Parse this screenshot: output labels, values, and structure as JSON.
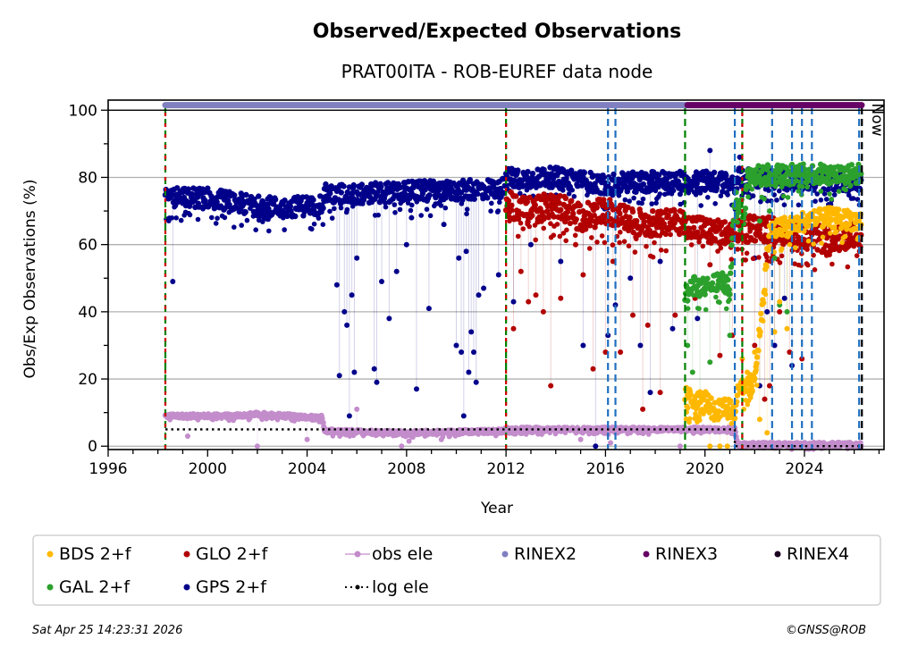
{
  "chart_data": {
    "type": "scatter",
    "title": "Observed/Expected Observations",
    "subtitle": "PRAT00ITA - ROB-EUREF data node",
    "xlabel": "Year",
    "ylabel": "Obs/Exp Observations (%)",
    "xlim": [
      1996,
      2027.2
    ],
    "ylim": [
      -1,
      103
    ],
    "xticks": [
      1996,
      2000,
      2004,
      2008,
      2012,
      2016,
      2020,
      2024
    ],
    "xtick_labels": [
      "1996",
      "2000",
      "2004",
      "2008",
      "2012",
      "2016",
      "2020",
      "2024"
    ],
    "yticks": [
      0,
      20,
      40,
      60,
      80,
      100
    ],
    "ytick_labels": [
      "0",
      "20",
      "40",
      "60",
      "80",
      "100"
    ],
    "grid": "horizontal",
    "now_label": "Now",
    "now_year": 2026.31,
    "series": [
      {
        "name": "GPS 2+f",
        "color": "#00008b",
        "segments": [
          [
            1998.3,
            74
          ],
          [
            2000.0,
            74
          ],
          [
            2001.5,
            72
          ],
          [
            2003.0,
            71
          ],
          [
            2004.6,
            72
          ],
          [
            2004.7,
            75
          ],
          [
            2006.0,
            75
          ],
          [
            2008.0,
            76
          ],
          [
            2010.0,
            76
          ],
          [
            2011.9,
            77
          ],
          [
            2012.0,
            80
          ],
          [
            2014.0,
            80
          ],
          [
            2016.0,
            78
          ],
          [
            2018.0,
            79
          ],
          [
            2020.0,
            79
          ],
          [
            2021.2,
            78
          ],
          [
            2021.3,
            80
          ],
          [
            2024.0,
            79
          ],
          [
            2026.3,
            79
          ]
        ],
        "spread": 3,
        "outliers": [
          [
            1998.6,
            49
          ],
          [
            2005.2,
            48
          ],
          [
            2005.3,
            21
          ],
          [
            2005.5,
            40
          ],
          [
            2005.6,
            36
          ],
          [
            2005.7,
            9
          ],
          [
            2005.8,
            45
          ],
          [
            2005.9,
            22
          ],
          [
            2006.0,
            56
          ],
          [
            2006.7,
            23
          ],
          [
            2006.8,
            19
          ],
          [
            2007.0,
            49
          ],
          [
            2007.3,
            38
          ],
          [
            2007.6,
            52
          ],
          [
            2008.0,
            60
          ],
          [
            2008.2,
            68
          ],
          [
            2008.4,
            17
          ],
          [
            2008.9,
            41
          ],
          [
            2009.5,
            66
          ],
          [
            2010.0,
            30
          ],
          [
            2010.1,
            56
          ],
          [
            2010.2,
            28
          ],
          [
            2010.3,
            9
          ],
          [
            2010.4,
            58
          ],
          [
            2010.5,
            22
          ],
          [
            2010.6,
            34
          ],
          [
            2010.7,
            28
          ],
          [
            2010.8,
            19
          ],
          [
            2010.9,
            45
          ],
          [
            2011.1,
            47
          ],
          [
            2011.7,
            51
          ],
          [
            2012.3,
            43
          ],
          [
            2013.0,
            60
          ],
          [
            2014.2,
            55
          ],
          [
            2015.1,
            30
          ],
          [
            2015.6,
            0
          ],
          [
            2016.1,
            33
          ],
          [
            2016.4,
            42
          ],
          [
            2017.0,
            50
          ],
          [
            2017.4,
            30
          ],
          [
            2017.8,
            16
          ],
          [
            2018.2,
            55
          ],
          [
            2018.7,
            35
          ],
          [
            2019.0,
            75
          ],
          [
            2019.7,
            38
          ],
          [
            2020.2,
            88
          ],
          [
            2021.4,
            86
          ],
          [
            2021.6,
            80
          ],
          [
            2022.0,
            56
          ],
          [
            2022.2,
            18
          ],
          [
            2022.5,
            40
          ],
          [
            2022.8,
            30
          ],
          [
            2023.2,
            44
          ],
          [
            2023.5,
            24
          ]
        ]
      },
      {
        "name": "GLO 2+f",
        "color": "#b20000",
        "segments": [
          [
            2012.0,
            72
          ],
          [
            2013.0,
            70
          ],
          [
            2014.0,
            72
          ],
          [
            2015.0,
            68
          ],
          [
            2016.0,
            70
          ],
          [
            2017.0,
            67
          ],
          [
            2018.0,
            66
          ],
          [
            2019.0,
            67
          ],
          [
            2020.0,
            64
          ],
          [
            2021.0,
            63
          ],
          [
            2022.0,
            65
          ],
          [
            2023.0,
            64
          ],
          [
            2024.0,
            63
          ],
          [
            2025.0,
            61
          ],
          [
            2026.3,
            64
          ]
        ],
        "spread": 4,
        "outliers": [
          [
            2012.3,
            35
          ],
          [
            2012.6,
            52
          ],
          [
            2012.9,
            43
          ],
          [
            2013.2,
            45
          ],
          [
            2013.5,
            40
          ],
          [
            2013.8,
            18
          ],
          [
            2014.2,
            44
          ],
          [
            2014.8,
            60
          ],
          [
            2015.1,
            51
          ],
          [
            2015.5,
            23
          ],
          [
            2016.0,
            28
          ],
          [
            2016.3,
            55
          ],
          [
            2016.6,
            28
          ],
          [
            2017.1,
            39
          ],
          [
            2017.5,
            11
          ],
          [
            2017.7,
            36
          ],
          [
            2018.2,
            16
          ],
          [
            2018.8,
            39
          ],
          [
            2019.6,
            44
          ],
          [
            2020.2,
            54
          ],
          [
            2020.6,
            27
          ],
          [
            2021.1,
            33
          ],
          [
            2022.0,
            30
          ],
          [
            2022.4,
            14
          ],
          [
            2022.6,
            18
          ],
          [
            2023.0,
            40
          ],
          [
            2023.4,
            28
          ],
          [
            2023.9,
            26
          ]
        ]
      },
      {
        "name": "GAL 2+f",
        "color": "#2ca02c",
        "segments": [
          [
            2019.2,
            45
          ],
          [
            2019.6,
            48
          ],
          [
            2020.0,
            47
          ],
          [
            2020.5,
            49
          ],
          [
            2021.0,
            48
          ],
          [
            2021.2,
            73
          ],
          [
            2021.6,
            70
          ],
          [
            2021.7,
            81
          ],
          [
            2023.0,
            81
          ],
          [
            2024.0,
            81
          ],
          [
            2025.0,
            81
          ],
          [
            2026.3,
            81
          ]
        ],
        "spread": 3,
        "outliers": [
          [
            2019.3,
            30
          ],
          [
            2019.5,
            22
          ],
          [
            2019.8,
            15
          ],
          [
            2020.2,
            25
          ],
          [
            2021.0,
            33
          ],
          [
            2022.2,
            67
          ],
          [
            2022.6,
            70
          ],
          [
            2022.8,
            56
          ],
          [
            2023.0,
            42
          ],
          [
            2023.3,
            40
          ]
        ]
      },
      {
        "name": "BDS 2+f",
        "color": "#ffb800",
        "segments": [
          [
            2019.2,
            15
          ],
          [
            2019.6,
            13
          ],
          [
            2020.0,
            14
          ],
          [
            2020.4,
            10
          ],
          [
            2020.8,
            12
          ],
          [
            2021.2,
            10
          ],
          [
            2021.3,
            18
          ],
          [
            2022.0,
            19
          ],
          [
            2022.6,
            64
          ],
          [
            2023.0,
            65
          ],
          [
            2024.0,
            67
          ],
          [
            2025.0,
            68
          ],
          [
            2026.3,
            67
          ]
        ],
        "spread": 3,
        "outliers": [
          [
            2020.2,
            0
          ],
          [
            2020.6,
            0
          ],
          [
            2020.9,
            0
          ],
          [
            2021.5,
            26
          ],
          [
            2021.7,
            22
          ],
          [
            2022.0,
            28
          ],
          [
            2022.2,
            8
          ],
          [
            2022.5,
            4
          ],
          [
            2022.8,
            34
          ],
          [
            2023.0,
            43
          ],
          [
            2023.3,
            35
          ]
        ]
      },
      {
        "name": "obs ele",
        "color": "#c38ccb",
        "segments": [
          [
            1998.3,
            9
          ],
          [
            2001.0,
            9
          ],
          [
            2002.0,
            9.5
          ],
          [
            2004.6,
            8.5
          ],
          [
            2004.7,
            4.5
          ],
          [
            2008.0,
            4
          ],
          [
            2011.9,
            4.5
          ],
          [
            2012.0,
            5
          ],
          [
            2016.0,
            5
          ],
          [
            2021.2,
            5
          ],
          [
            2021.3,
            0.5
          ],
          [
            2026.3,
            0.5
          ]
        ],
        "spread": 0.6,
        "outliers": [
          [
            1999.2,
            3
          ],
          [
            2002.0,
            0
          ],
          [
            2004.0,
            2
          ],
          [
            2006.0,
            11
          ],
          [
            2007.8,
            0
          ],
          [
            2008.1,
            1.5
          ],
          [
            2009.4,
            2
          ],
          [
            2015.0,
            2
          ],
          [
            2016.2,
            1
          ],
          [
            2017.0,
            4
          ],
          [
            2019.0,
            0
          ]
        ]
      },
      {
        "name": "log ele",
        "color": "#000000",
        "style": "dotted",
        "segments": [
          [
            1998.3,
            5
          ],
          [
            2021.2,
            5
          ],
          [
            2021.2,
            0
          ],
          [
            2026.3,
            0
          ]
        ]
      }
    ],
    "file_format_bars": [
      {
        "name": "RINEX2",
        "color": "#8080c0",
        "start": 1998.3,
        "end": 2019.3
      },
      {
        "name": "RINEX3",
        "color": "#660066",
        "start": 2019.3,
        "end": 2026.3
      },
      {
        "name": "RINEX4",
        "color": "#1a0020",
        "start": null,
        "end": null
      }
    ],
    "event_lines": [
      {
        "year": 1998.3,
        "color": "#008000",
        "style": "dashed",
        "kind": "receiver"
      },
      {
        "year": 1998.3,
        "color": "#d00000",
        "style": "dashed",
        "kind": "antenna"
      },
      {
        "year": 2012.0,
        "color": "#008000",
        "style": "dashed",
        "kind": "receiver"
      },
      {
        "year": 2012.0,
        "color": "#d00000",
        "style": "dashed",
        "kind": "antenna"
      },
      {
        "year": 2016.1,
        "color": "#1f6fc0",
        "style": "dashed",
        "kind": "firmware"
      },
      {
        "year": 2016.4,
        "color": "#1f6fc0",
        "style": "dashed",
        "kind": "firmware"
      },
      {
        "year": 2019.2,
        "color": "#008000",
        "style": "dashed",
        "kind": "receiver"
      },
      {
        "year": 2021.2,
        "color": "#1f6fc0",
        "style": "dashed",
        "kind": "firmware"
      },
      {
        "year": 2021.5,
        "color": "#008000",
        "style": "dashed",
        "kind": "receiver"
      },
      {
        "year": 2021.5,
        "color": "#d00000",
        "style": "dashed",
        "kind": "antenna"
      },
      {
        "year": 2022.7,
        "color": "#1f6fc0",
        "style": "dashed",
        "kind": "firmware"
      },
      {
        "year": 2023.5,
        "color": "#1f6fc0",
        "style": "dashed",
        "kind": "firmware"
      },
      {
        "year": 2023.9,
        "color": "#1f6fc0",
        "style": "dashed",
        "kind": "firmware"
      },
      {
        "year": 2024.3,
        "color": "#1f6fc0",
        "style": "dashed",
        "kind": "firmware"
      },
      {
        "year": 2026.2,
        "color": "#1f6fc0",
        "style": "dashed",
        "kind": "firmware"
      },
      {
        "year": 2026.31,
        "color": "#000000",
        "style": "dashed",
        "kind": "now"
      }
    ],
    "legend": {
      "placement": "bottom",
      "entries": [
        {
          "label": "BDS 2+f",
          "color": "#ffb800",
          "marker": "dot"
        },
        {
          "label": "GAL 2+f",
          "color": "#2ca02c",
          "marker": "dot"
        },
        {
          "label": "GLO 2+f",
          "color": "#b20000",
          "marker": "dot"
        },
        {
          "label": "GPS 2+f",
          "color": "#00008b",
          "marker": "dot"
        },
        {
          "label": "obs ele",
          "color": "#c38ccb",
          "marker": "line-dot"
        },
        {
          "label": "log ele",
          "color": "#000000",
          "marker": "dotted-dot"
        },
        {
          "label": "RINEX2",
          "color": "#8080c0",
          "marker": "dot"
        },
        {
          "label": "RINEX3",
          "color": "#660066",
          "marker": "dot"
        },
        {
          "label": "RINEX4",
          "color": "#1a0020",
          "marker": "dot"
        }
      ]
    }
  },
  "footer": {
    "timestamp": "Sat Apr 25 14:23:31 2026",
    "copyright": "©GNSS@ROB"
  }
}
